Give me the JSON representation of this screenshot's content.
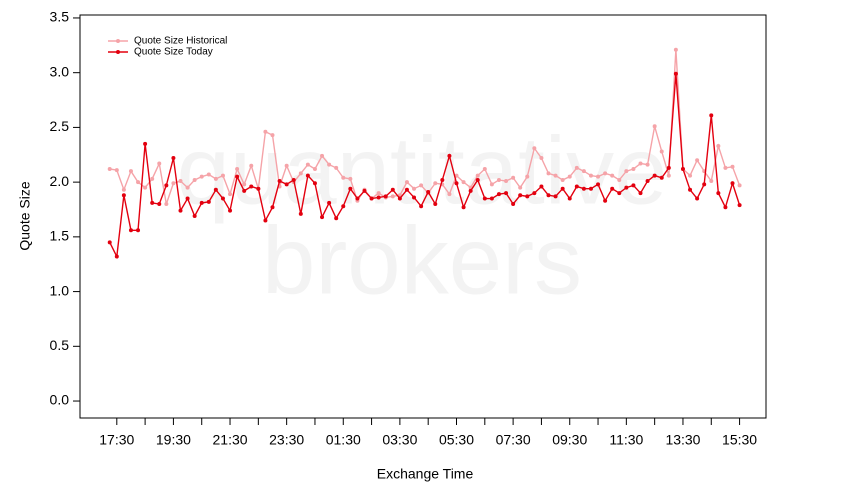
{
  "chart_data": {
    "type": "line",
    "x_label": "Exchange Time",
    "y_label": "Quote Size",
    "watermark": [
      "quantitative",
      "brokers"
    ],
    "legend": "top-left",
    "x": [
      "17:15",
      "17:30",
      "17:45",
      "18:00",
      "18:15",
      "18:30",
      "18:45",
      "19:00",
      "19:15",
      "19:30",
      "19:45",
      "20:00",
      "20:15",
      "20:30",
      "20:45",
      "21:00",
      "21:15",
      "21:30",
      "21:45",
      "22:00",
      "22:15",
      "22:30",
      "22:45",
      "23:00",
      "23:15",
      "23:30",
      "23:45",
      "00:00",
      "00:15",
      "00:30",
      "00:45",
      "01:00",
      "01:15",
      "01:30",
      "01:45",
      "02:00",
      "02:15",
      "02:30",
      "02:45",
      "03:00",
      "03:15",
      "03:30",
      "03:45",
      "04:00",
      "04:15",
      "04:30",
      "04:45",
      "05:00",
      "05:15",
      "05:30",
      "05:45",
      "06:00",
      "06:15",
      "06:30",
      "06:45",
      "07:00",
      "07:15",
      "07:30",
      "07:45",
      "08:00",
      "08:15",
      "08:30",
      "08:45",
      "09:00",
      "09:15",
      "09:30",
      "09:45",
      "10:00",
      "10:15",
      "10:30",
      "10:45",
      "11:00",
      "11:15",
      "11:30",
      "11:45",
      "12:00",
      "12:15",
      "12:30",
      "12:45",
      "13:00",
      "13:15",
      "13:30",
      "13:45",
      "14:00",
      "14:15",
      "14:30",
      "14:45",
      "15:00",
      "15:15",
      "15:30"
    ],
    "series": [
      {
        "name": "Quote Size Historical",
        "color": "#f5a3a8",
        "values": [
          2.12,
          2.11,
          1.93,
          2.1,
          2.0,
          1.95,
          2.03,
          2.17,
          1.8,
          1.99,
          2.01,
          1.95,
          2.02,
          2.05,
          2.07,
          2.03,
          2.06,
          1.89,
          2.12,
          1.98,
          2.15,
          1.94,
          2.46,
          2.43,
          1.96,
          2.15,
          2.0,
          2.08,
          2.16,
          2.12,
          2.24,
          2.16,
          2.13,
          2.04,
          2.03,
          1.83,
          1.93,
          1.85,
          1.9,
          1.86,
          1.87,
          1.88,
          2.0,
          1.94,
          1.97,
          1.9,
          1.99,
          1.98,
          1.89,
          2.06,
          2.0,
          1.95,
          2.06,
          2.12,
          1.98,
          2.02,
          2.01,
          2.04,
          1.95,
          2.05,
          2.31,
          2.22,
          2.08,
          2.06,
          2.02,
          2.05,
          2.13,
          2.1,
          2.06,
          2.05,
          2.08,
          2.06,
          2.02,
          2.1,
          2.12,
          2.17,
          2.16,
          2.51,
          2.28,
          2.06,
          3.21,
          2.12,
          2.06,
          2.2,
          2.1,
          2.01,
          2.33,
          2.13,
          2.14,
          1.97
        ]
      },
      {
        "name": "Quote Size Today",
        "color": "#e3000f",
        "values": [
          1.45,
          1.32,
          1.88,
          1.56,
          1.56,
          2.35,
          1.81,
          1.8,
          1.97,
          2.22,
          1.74,
          1.85,
          1.69,
          1.81,
          1.82,
          1.93,
          1.85,
          1.74,
          2.05,
          1.92,
          1.96,
          1.94,
          1.65,
          1.77,
          2.01,
          1.98,
          2.02,
          1.71,
          2.06,
          1.99,
          1.68,
          1.81,
          1.67,
          1.78,
          1.94,
          1.85,
          1.92,
          1.85,
          1.86,
          1.87,
          1.93,
          1.85,
          1.93,
          1.86,
          1.78,
          1.91,
          1.8,
          2.02,
          2.24,
          1.99,
          1.77,
          1.92,
          2.02,
          1.85,
          1.85,
          1.89,
          1.9,
          1.8,
          1.88,
          1.87,
          1.9,
          1.96,
          1.88,
          1.87,
          1.94,
          1.85,
          1.96,
          1.94,
          1.94,
          1.98,
          1.83,
          1.94,
          1.9,
          1.95,
          1.97,
          1.9,
          2.01,
          2.06,
          2.04,
          2.13,
          2.99,
          2.12,
          1.93,
          1.85,
          1.98,
          2.61,
          1.9,
          1.77,
          1.99,
          1.79
        ]
      }
    ],
    "xlim": [
      "16:12",
      "16:26"
    ],
    "xticks": [
      "17:30",
      "19:30",
      "21:30",
      "23:30",
      "01:30",
      "03:30",
      "05:30",
      "07:30",
      "09:30",
      "11:30",
      "13:30",
      "15:30"
    ],
    "ylim": [
      -0.155,
      3.527
    ],
    "yticks": [
      {
        "value": 0,
        "label": "0.0"
      },
      0.5,
      {
        "value": 1,
        "label": "1.0"
      },
      1.5,
      {
        "value": 2,
        "label": "2.0"
      },
      2.5,
      {
        "value": 3,
        "label": "3.0"
      },
      3.5
    ]
  }
}
